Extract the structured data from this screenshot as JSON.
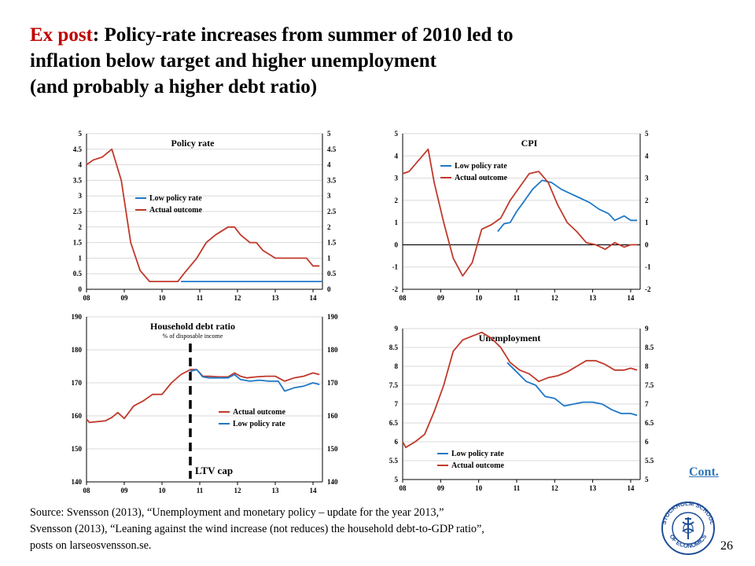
{
  "slide": {
    "title_em": "Ex post",
    "title_rest": ": Policy-rate increases from summer of 2010 led to",
    "title_line2": "inflation below target and higher unemployment",
    "title_line3": "(and probably a higher debt ratio)",
    "source_line1": "Source: Svensson (2013), “Unemployment and monetary policy – update for the year 2013,”",
    "source_line2": "Svensson (2013), “Leaning against the wind increase (not reduces) the household debt-to-GDP ratio”,",
    "source_line3": "posts on larseosvensson.se.",
    "cont_link": "Cont.",
    "page_number": "26",
    "logo_icon": "stockholm-school-of-economics-seal-icon",
    "logo_text": "STOCKHOLM SCHOOL OF ECONOMICS"
  },
  "colors": {
    "actual": "#c0392b",
    "low": "#1f78c8",
    "grid": "#d9d9d9"
  },
  "chart_data": [
    {
      "id": "policy-rate",
      "type": "line",
      "title": "Policy rate",
      "subtitle": "",
      "x_ticks": [
        "08",
        "09",
        "10",
        "11",
        "12",
        "13",
        "14"
      ],
      "xlim": [
        2008,
        2014.25
      ],
      "ylim": [
        0,
        5
      ],
      "y_ticks": [
        "0",
        "0.5",
        "1",
        "1.5",
        "2",
        "2.5",
        "3",
        "3.5",
        "4",
        "4.5",
        "5"
      ],
      "legend": "mid-left",
      "annotation": "",
      "series": [
        {
          "name": "Low policy rate",
          "color_key": "low",
          "x": [
            2010.5,
            2011,
            2011.5,
            2012,
            2012.5,
            2013,
            2013.5,
            2014,
            2014.25
          ],
          "y": [
            0.25,
            0.25,
            0.25,
            0.25,
            0.25,
            0.25,
            0.25,
            0.25,
            0.25
          ]
        },
        {
          "name": "Actual outcome",
          "color_key": "actual",
          "x": [
            2008,
            2008.17,
            2008.42,
            2008.67,
            2008.92,
            2009.17,
            2009.42,
            2009.67,
            2009.92,
            2010.17,
            2010.42,
            2010.58,
            2010.75,
            2010.92,
            2011.17,
            2011.42,
            2011.75,
            2011.92,
            2012.08,
            2012.33,
            2012.5,
            2012.67,
            2013,
            2013.42,
            2013.83,
            2014,
            2014.17
          ],
          "y": [
            4,
            4.15,
            4.25,
            4.5,
            3.5,
            1.5,
            0.6,
            0.25,
            0.25,
            0.25,
            0.25,
            0.5,
            0.75,
            1,
            1.5,
            1.75,
            2,
            2,
            1.75,
            1.5,
            1.5,
            1.25,
            1,
            1,
            1,
            0.75,
            0.75
          ]
        }
      ]
    },
    {
      "id": "cpi",
      "type": "line",
      "title": "CPI",
      "subtitle": "",
      "x_ticks": [
        "08",
        "09",
        "10",
        "11",
        "12",
        "13",
        "14"
      ],
      "xlim": [
        2008,
        2014.25
      ],
      "ylim": [
        -2,
        5
      ],
      "y_ticks": [
        "-2",
        "-1",
        "0",
        "1",
        "2",
        "3",
        "4",
        "5"
      ],
      "zero_line": true,
      "legend": "upper-left",
      "annotation": "",
      "series": [
        {
          "name": "Low policy rate",
          "color_key": "low",
          "x": [
            2010.5,
            2010.67,
            2010.83,
            2011,
            2011.17,
            2011.42,
            2011.67,
            2011.92,
            2012.17,
            2012.42,
            2012.67,
            2012.92,
            2013.17,
            2013.42,
            2013.58,
            2013.83,
            2014,
            2014.17
          ],
          "y": [
            0.6,
            0.95,
            1.0,
            1.5,
            1.9,
            2.5,
            2.9,
            2.8,
            2.5,
            2.3,
            2.1,
            1.9,
            1.6,
            1.4,
            1.1,
            1.3,
            1.1,
            1.1
          ]
        },
        {
          "name": "Actual outcome",
          "color_key": "actual",
          "x": [
            2008,
            2008.17,
            2008.42,
            2008.67,
            2008.83,
            2009.08,
            2009.33,
            2009.58,
            2009.83,
            2010.08,
            2010.33,
            2010.58,
            2010.83,
            2011.08,
            2011.33,
            2011.58,
            2011.83,
            2012.08,
            2012.33,
            2012.58,
            2012.83,
            2013.08,
            2013.33,
            2013.58,
            2013.83,
            2014,
            2014.17
          ],
          "y": [
            3.2,
            3.3,
            3.8,
            4.3,
            2.8,
            1.0,
            -0.6,
            -1.4,
            -0.8,
            0.7,
            0.9,
            1.2,
            2.0,
            2.6,
            3.2,
            3.3,
            2.8,
            1.8,
            1.0,
            0.6,
            0.1,
            0.0,
            -0.2,
            0.1,
            -0.1,
            0.0,
            0.0
          ]
        }
      ]
    },
    {
      "id": "household-debt",
      "type": "line",
      "title": "Household debt ratio",
      "subtitle": "% of disposable income",
      "x_ticks": [
        "08",
        "09",
        "10",
        "11",
        "12",
        "13",
        "14"
      ],
      "xlim": [
        2008,
        2014.25
      ],
      "ylim": [
        140,
        190
      ],
      "y_ticks": [
        "140",
        "150",
        "160",
        "170",
        "180",
        "190"
      ],
      "legend": "lower-right",
      "annotation": "LTV cap",
      "annotation_x": 2010.75,
      "series": [
        {
          "name": "Actual outcome",
          "color_key": "actual",
          "x": [
            2008,
            2008.08,
            2008.5,
            2008.67,
            2008.83,
            2009,
            2009.25,
            2009.5,
            2009.75,
            2010,
            2010.25,
            2010.5,
            2010.75,
            2010.92,
            2011.08,
            2011.25,
            2011.5,
            2011.75,
            2011.92,
            2012.08,
            2012.25,
            2012.5,
            2012.75,
            2013,
            2013.25,
            2013.5,
            2013.75,
            2014,
            2014.17
          ],
          "y": [
            159,
            158,
            158.5,
            159.5,
            161,
            159.2,
            163,
            164.5,
            166.5,
            166.5,
            170,
            172.5,
            174,
            174,
            172,
            172,
            171.8,
            171.8,
            173,
            172,
            171.5,
            171.8,
            172,
            172,
            170.5,
            171.5,
            172,
            173,
            172.5
          ]
        },
        {
          "name": "Low policy rate",
          "color_key": "low",
          "x": [
            2010.75,
            2010.92,
            2011.08,
            2011.25,
            2011.5,
            2011.75,
            2011.92,
            2012.08,
            2012.33,
            2012.58,
            2012.83,
            2013.08,
            2013.25,
            2013.5,
            2013.75,
            2014,
            2014.17
          ],
          "y": [
            173.5,
            174,
            171.8,
            171.5,
            171.5,
            171.5,
            172.5,
            171,
            170.5,
            170.8,
            170.5,
            170.5,
            167.5,
            168.5,
            169,
            170,
            169.5
          ]
        }
      ]
    },
    {
      "id": "unemployment",
      "type": "line",
      "title": "Unemployment",
      "subtitle": "",
      "x_ticks": [
        "08",
        "09",
        "10",
        "11",
        "12",
        "13",
        "14"
      ],
      "xlim": [
        2008,
        2014.25
      ],
      "ylim": [
        5,
        9
      ],
      "y_ticks": [
        "5",
        "5.5",
        "6",
        "6.5",
        "7",
        "7.5",
        "8",
        "8.5",
        "9"
      ],
      "legend": "lower-left",
      "annotation": "",
      "series": [
        {
          "name": "Low policy rate",
          "color_key": "low",
          "x": [
            2010.75,
            2011,
            2011.25,
            2011.5,
            2011.75,
            2012,
            2012.25,
            2012.5,
            2012.75,
            2013,
            2013.25,
            2013.5,
            2013.75,
            2014,
            2014.17
          ],
          "y": [
            8.1,
            7.85,
            7.6,
            7.5,
            7.2,
            7.15,
            6.95,
            7.0,
            7.05,
            7.05,
            7.0,
            6.85,
            6.75,
            6.75,
            6.7
          ]
        },
        {
          "name": "Actual outcome",
          "color_key": "actual",
          "x": [
            2008,
            2008.08,
            2008.33,
            2008.58,
            2008.83,
            2009.08,
            2009.33,
            2009.58,
            2009.83,
            2010.08,
            2010.33,
            2010.58,
            2010.83,
            2011.08,
            2011.33,
            2011.58,
            2011.83,
            2012.08,
            2012.33,
            2012.58,
            2012.83,
            2013.08,
            2013.33,
            2013.58,
            2013.83,
            2014,
            2014.17
          ],
          "y": [
            6.0,
            5.85,
            6.0,
            6.2,
            6.8,
            7.5,
            8.4,
            8.7,
            8.8,
            8.9,
            8.75,
            8.5,
            8.1,
            7.9,
            7.8,
            7.6,
            7.7,
            7.75,
            7.85,
            8.0,
            8.15,
            8.15,
            8.05,
            7.9,
            7.9,
            7.95,
            7.9
          ]
        }
      ]
    }
  ]
}
